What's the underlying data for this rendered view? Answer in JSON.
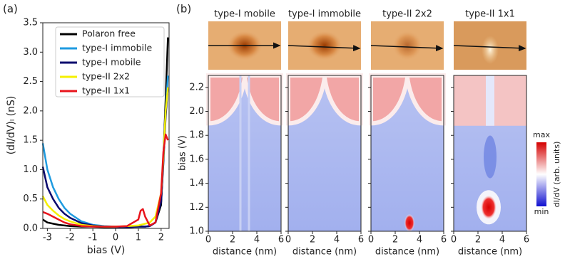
{
  "chart_data": [
    {
      "type": "line",
      "label": "(a)",
      "xlabel": "bias (V)",
      "ylabel": "(dI/dV)ₗ (nS)",
      "xlim": [
        -3.2,
        2.35
      ],
      "xticks": [
        -3,
        -2,
        -1,
        0,
        1,
        2
      ],
      "ylim": [
        0,
        3.5
      ],
      "yticks": [
        {
          "value": 0,
          "label": "0.0"
        },
        0.5,
        {
          "value": 1,
          "label": "1.0"
        },
        1.5,
        {
          "value": 2,
          "label": "2.0"
        },
        2.5,
        {
          "value": 3,
          "label": "3.0"
        },
        3.5
      ],
      "x": [
        -3.2,
        -3,
        -2.75,
        -2.5,
        -2.25,
        -2,
        -1.5,
        -1,
        -0.5,
        0,
        0.5,
        1,
        1.1,
        1.2,
        1.3,
        1.5,
        1.75,
        2,
        2.1,
        2.2,
        2.3
      ],
      "series": [
        {
          "name": "Polaron free",
          "color": "#000000",
          "values": [
            0.15,
            0.1,
            0.08,
            0.06,
            0.05,
            0.04,
            0.03,
            0.03,
            0.02,
            0.02,
            0.02,
            0.03,
            0.03,
            0.03,
            0.03,
            0.04,
            0.1,
            0.4,
            1.2,
            2.2,
            3.25
          ]
        },
        {
          "name": "type-I immobile",
          "color": "#1f9be0",
          "values": [
            1.45,
            1.0,
            0.7,
            0.5,
            0.35,
            0.25,
            0.12,
            0.06,
            0.04,
            0.03,
            0.03,
            0.03,
            0.03,
            0.03,
            0.03,
            0.04,
            0.1,
            0.5,
            1.2,
            2.0,
            2.6
          ]
        },
        {
          "name": "type-I mobile",
          "color": "#0a0a6e",
          "values": [
            1.05,
            0.7,
            0.5,
            0.35,
            0.25,
            0.18,
            0.09,
            0.05,
            0.03,
            0.02,
            0.02,
            0.03,
            0.03,
            0.03,
            0.03,
            0.04,
            0.1,
            0.45,
            1.1,
            1.9,
            2.4
          ]
        },
        {
          "name": "type-II 2x2",
          "color": "#f5f000",
          "values": [
            0.55,
            0.4,
            0.3,
            0.22,
            0.16,
            0.12,
            0.06,
            0.04,
            0.03,
            0.03,
            0.04,
            0.05,
            0.06,
            0.07,
            0.08,
            0.1,
            0.2,
            0.6,
            1.2,
            2.0,
            2.4
          ]
        },
        {
          "name": "type-II 1x1",
          "color": "#e8141c",
          "values": [
            0.28,
            0.25,
            0.2,
            0.15,
            0.1,
            0.07,
            0.04,
            0.03,
            0.03,
            0.03,
            0.04,
            0.15,
            0.3,
            0.33,
            0.2,
            0.05,
            0.1,
            0.6,
            1.3,
            1.6,
            1.5
          ]
        }
      ]
    },
    {
      "type": "heatmap",
      "label": "(b)",
      "titles": [
        "type-I mobile",
        "type-I immobile",
        "type-II 2x2",
        "type-II 1x1"
      ],
      "xlabel": "distance (nm)",
      "ylabel": "bias (V)",
      "xlim": [
        0,
        6
      ],
      "xticks": [
        0,
        2,
        4,
        6
      ],
      "ylim": [
        1.0,
        2.3
      ],
      "yticks": [
        {
          "value": 1,
          "label": "1.0"
        },
        1.2,
        1.4,
        1.6,
        1.8,
        {
          "value": 2,
          "label": "2.0"
        },
        2.2
      ],
      "colorbar": {
        "label": "dI/dV (arb. units)",
        "max": "max",
        "min": "min"
      }
    }
  ]
}
